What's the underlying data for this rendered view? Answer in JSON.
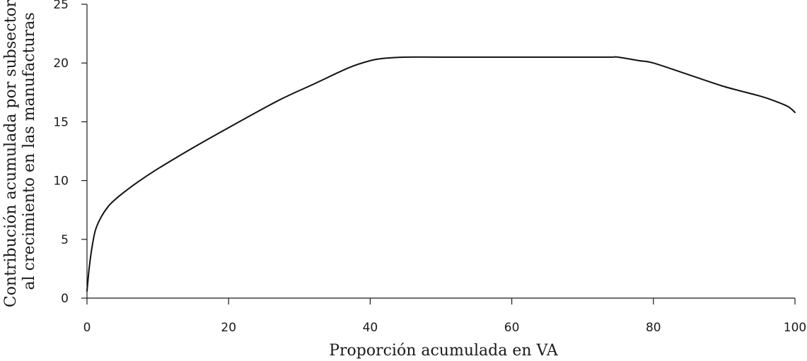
{
  "chart_data": {
    "type": "line",
    "xlabel": "Proporción acumulada en VA",
    "ylabel_lines": [
      "Contribución acumulada por subsector",
      "al crecimiento en las manufacturas"
    ],
    "xlim": [
      0,
      100
    ],
    "ylim": [
      0,
      25
    ],
    "xticks": [
      0,
      20,
      40,
      60,
      80,
      100
    ],
    "yticks": [
      0,
      5,
      10,
      15,
      20,
      25
    ],
    "grid": false,
    "series": [
      {
        "color": "#111111",
        "x": [
          0,
          0.3,
          0.7,
          1.2,
          2,
          3,
          4,
          5,
          7,
          10,
          15,
          20,
          27,
          32,
          37,
          40,
          42,
          45,
          50,
          60,
          70,
          74,
          75,
          78,
          80,
          85,
          90,
          95,
          97,
          99,
          100
        ],
        "y": [
          0.6,
          2.5,
          4.3,
          5.8,
          6.9,
          7.8,
          8.4,
          8.9,
          9.8,
          11.0,
          12.8,
          14.5,
          16.8,
          18.2,
          19.6,
          20.2,
          20.4,
          20.5,
          20.5,
          20.5,
          20.5,
          20.5,
          20.5,
          20.2,
          20.0,
          19.0,
          18.0,
          17.2,
          16.8,
          16.3,
          15.8
        ]
      }
    ]
  }
}
